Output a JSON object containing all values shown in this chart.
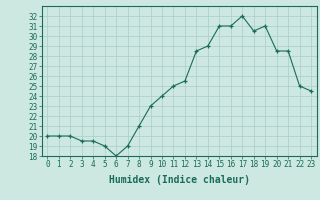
{
  "x": [
    0,
    1,
    2,
    3,
    4,
    5,
    6,
    7,
    8,
    9,
    10,
    11,
    12,
    13,
    14,
    15,
    16,
    17,
    18,
    19,
    20,
    21,
    22,
    23
  ],
  "y": [
    20,
    20,
    20,
    19.5,
    19.5,
    19,
    18,
    19,
    21,
    23,
    24,
    25,
    25.5,
    28.5,
    29,
    31,
    31,
    32,
    30.5,
    31,
    28.5,
    28.5,
    25,
    24.5
  ],
  "xlabel": "Humidex (Indice chaleur)",
  "ylim": [
    18,
    33
  ],
  "xlim": [
    -0.5,
    23.5
  ],
  "yticks": [
    18,
    19,
    20,
    21,
    22,
    23,
    24,
    25,
    26,
    27,
    28,
    29,
    30,
    31,
    32
  ],
  "xticks": [
    0,
    1,
    2,
    3,
    4,
    5,
    6,
    7,
    8,
    9,
    10,
    11,
    12,
    13,
    14,
    15,
    16,
    17,
    18,
    19,
    20,
    21,
    22,
    23
  ],
  "line_color": "#1a6b5a",
  "marker": "+",
  "bg_color": "#cce8e0",
  "grid_color": "#aacccc",
  "tick_color": "#1a6b5a",
  "label_color": "#1a6b5a",
  "tick_fontsize": 5.5,
  "xlabel_fontsize": 7
}
